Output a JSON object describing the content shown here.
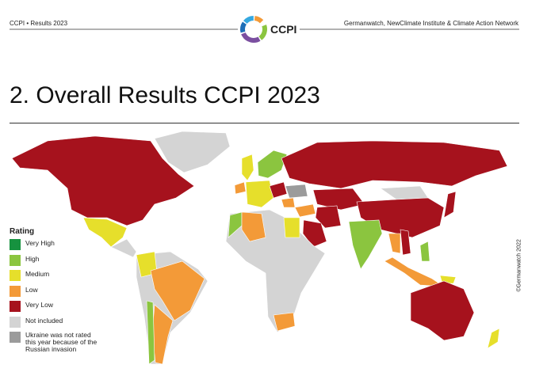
{
  "header": {
    "left": "CCPI • Results 2023",
    "logo": "CCPI",
    "right": "Germanwatch, NewClimate Institute & Climate Action Network"
  },
  "title": "2. Overall Results CCPI 2023",
  "legend": {
    "title": "Rating",
    "items": [
      {
        "label": "Very High",
        "color": "#16923f"
      },
      {
        "label": "High",
        "color": "#8bc53f"
      },
      {
        "label": "Medium",
        "color": "#e6df2b"
      },
      {
        "label": "Low",
        "color": "#f39a38"
      },
      {
        "label": "Very Low",
        "color": "#a6121d"
      },
      {
        "label": "Not included",
        "color": "#d4d4d4"
      },
      {
        "label": "Ukraine was not rated this year because of the Russian invasion",
        "color": "#9b9b9b"
      }
    ]
  },
  "copyright": "©Germanwatch 2022"
}
